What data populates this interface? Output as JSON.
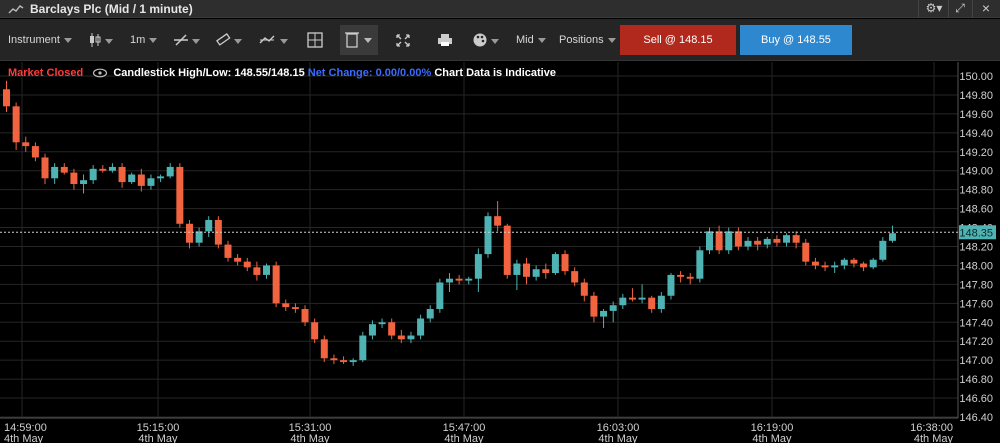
{
  "window": {
    "title": "Barclays Plc (Mid / 1 minute)"
  },
  "toolbar": {
    "instrument_label": "Instrument",
    "interval_label": "1m",
    "price_type_label": "Mid",
    "positions_label": "Positions",
    "sell_label": "Sell @ 148.15",
    "buy_label": "Buy @ 148.55"
  },
  "infobar": {
    "market_status": "Market Closed",
    "candle_label": "Candlestick High/Low: 148.55/148.15",
    "net_change_label": "Net Change: 0.00/0.00%",
    "indicative_label": "Chart Data is Indicative"
  },
  "chart_data": {
    "type": "candlestick",
    "yaxis_ticks": [
      "150.00",
      "149.80",
      "149.60",
      "149.40",
      "149.20",
      "149.00",
      "148.80",
      "148.60",
      "148.40",
      "148.20",
      "148.00",
      "147.80",
      "147.60",
      "147.40",
      "147.20",
      "147.00",
      "146.80",
      "146.60",
      "146.40"
    ],
    "ylim": [
      146.4,
      150.0
    ],
    "xaxis_ticks": [
      {
        "time": "14:59:00",
        "date": "4th May"
      },
      {
        "time": "15:15:00",
        "date": "4th May"
      },
      {
        "time": "15:31:00",
        "date": "4th May"
      },
      {
        "time": "15:47:00",
        "date": "4th May"
      },
      {
        "time": "16:03:00",
        "date": "4th May"
      },
      {
        "time": "16:19:00",
        "date": "4th May"
      },
      {
        "time": "16:38:00",
        "date": "4th May"
      }
    ],
    "current_price": "148.35",
    "current_price_value": 148.35,
    "up_color": "#4fb3b3",
    "down_color": "#f26440",
    "candles": [
      {
        "o": 149.86,
        "h": 149.95,
        "l": 149.62,
        "c": 149.68
      },
      {
        "o": 149.68,
        "h": 149.72,
        "l": 149.22,
        "c": 149.3
      },
      {
        "o": 149.3,
        "h": 149.36,
        "l": 149.2,
        "c": 149.26
      },
      {
        "o": 149.26,
        "h": 149.3,
        "l": 149.1,
        "c": 149.14
      },
      {
        "o": 149.14,
        "h": 149.18,
        "l": 148.86,
        "c": 148.92
      },
      {
        "o": 148.92,
        "h": 149.08,
        "l": 148.86,
        "c": 149.04
      },
      {
        "o": 149.04,
        "h": 149.08,
        "l": 148.96,
        "c": 148.98
      },
      {
        "o": 148.98,
        "h": 149.02,
        "l": 148.8,
        "c": 148.86
      },
      {
        "o": 148.86,
        "h": 148.96,
        "l": 148.76,
        "c": 148.9
      },
      {
        "o": 148.9,
        "h": 149.06,
        "l": 148.86,
        "c": 149.02
      },
      {
        "o": 149.02,
        "h": 149.06,
        "l": 148.98,
        "c": 149.0
      },
      {
        "o": 149.0,
        "h": 149.08,
        "l": 148.98,
        "c": 149.04
      },
      {
        "o": 149.04,
        "h": 149.08,
        "l": 148.82,
        "c": 148.88
      },
      {
        "o": 148.88,
        "h": 148.98,
        "l": 148.86,
        "c": 148.96
      },
      {
        "o": 148.96,
        "h": 149.02,
        "l": 148.78,
        "c": 148.84
      },
      {
        "o": 148.84,
        "h": 148.96,
        "l": 148.8,
        "c": 148.92
      },
      {
        "o": 148.92,
        "h": 148.96,
        "l": 148.88,
        "c": 148.94
      },
      {
        "o": 148.94,
        "h": 149.08,
        "l": 148.92,
        "c": 149.04
      },
      {
        "o": 149.04,
        "h": 149.08,
        "l": 148.4,
        "c": 148.44
      },
      {
        "o": 148.44,
        "h": 148.48,
        "l": 148.18,
        "c": 148.24
      },
      {
        "o": 148.24,
        "h": 148.4,
        "l": 148.2,
        "c": 148.36
      },
      {
        "o": 148.36,
        "h": 148.52,
        "l": 148.3,
        "c": 148.48
      },
      {
        "o": 148.48,
        "h": 148.52,
        "l": 148.18,
        "c": 148.22
      },
      {
        "o": 148.22,
        "h": 148.26,
        "l": 148.04,
        "c": 148.08
      },
      {
        "o": 148.08,
        "h": 148.12,
        "l": 148.0,
        "c": 148.04
      },
      {
        "o": 148.04,
        "h": 148.08,
        "l": 147.94,
        "c": 147.98
      },
      {
        "o": 147.98,
        "h": 148.04,
        "l": 147.84,
        "c": 147.9
      },
      {
        "o": 147.9,
        "h": 148.02,
        "l": 147.86,
        "c": 148.0
      },
      {
        "o": 148.0,
        "h": 148.04,
        "l": 147.56,
        "c": 147.6
      },
      {
        "o": 147.6,
        "h": 147.64,
        "l": 147.52,
        "c": 147.56
      },
      {
        "o": 147.56,
        "h": 147.6,
        "l": 147.5,
        "c": 147.54
      },
      {
        "o": 147.54,
        "h": 147.58,
        "l": 147.36,
        "c": 147.4
      },
      {
        "o": 147.4,
        "h": 147.44,
        "l": 147.18,
        "c": 147.22
      },
      {
        "o": 147.22,
        "h": 147.26,
        "l": 146.98,
        "c": 147.02
      },
      {
        "o": 147.02,
        "h": 147.06,
        "l": 146.96,
        "c": 147.0
      },
      {
        "o": 147.0,
        "h": 147.04,
        "l": 146.96,
        "c": 146.98
      },
      {
        "o": 146.98,
        "h": 147.02,
        "l": 146.94,
        "c": 147.0
      },
      {
        "o": 147.0,
        "h": 147.3,
        "l": 146.98,
        "c": 147.26
      },
      {
        "o": 147.26,
        "h": 147.42,
        "l": 147.22,
        "c": 147.38
      },
      {
        "o": 147.38,
        "h": 147.44,
        "l": 147.34,
        "c": 147.4
      },
      {
        "o": 147.4,
        "h": 147.44,
        "l": 147.22,
        "c": 147.26
      },
      {
        "o": 147.26,
        "h": 147.32,
        "l": 147.18,
        "c": 147.22
      },
      {
        "o": 147.22,
        "h": 147.3,
        "l": 147.18,
        "c": 147.26
      },
      {
        "o": 147.26,
        "h": 147.48,
        "l": 147.22,
        "c": 147.44
      },
      {
        "o": 147.44,
        "h": 147.58,
        "l": 147.4,
        "c": 147.54
      },
      {
        "o": 147.54,
        "h": 147.86,
        "l": 147.5,
        "c": 147.82
      },
      {
        "o": 147.82,
        "h": 147.92,
        "l": 147.72,
        "c": 147.86
      },
      {
        "o": 147.86,
        "h": 147.9,
        "l": 147.8,
        "c": 147.84
      },
      {
        "o": 147.84,
        "h": 147.88,
        "l": 147.8,
        "c": 147.86
      },
      {
        "o": 147.86,
        "h": 148.18,
        "l": 147.72,
        "c": 148.12
      },
      {
        "o": 148.12,
        "h": 148.56,
        "l": 148.08,
        "c": 148.52
      },
      {
        "o": 148.52,
        "h": 148.68,
        "l": 148.36,
        "c": 148.42
      },
      {
        "o": 148.42,
        "h": 148.44,
        "l": 147.86,
        "c": 147.9
      },
      {
        "o": 147.9,
        "h": 148.06,
        "l": 147.74,
        "c": 148.02
      },
      {
        "o": 148.02,
        "h": 148.08,
        "l": 147.8,
        "c": 147.88
      },
      {
        "o": 147.88,
        "h": 148.0,
        "l": 147.84,
        "c": 147.96
      },
      {
        "o": 147.96,
        "h": 148.02,
        "l": 147.86,
        "c": 147.92
      },
      {
        "o": 147.92,
        "h": 148.14,
        "l": 147.9,
        "c": 148.12
      },
      {
        "o": 148.12,
        "h": 148.16,
        "l": 147.9,
        "c": 147.94
      },
      {
        "o": 147.94,
        "h": 147.98,
        "l": 147.78,
        "c": 147.82
      },
      {
        "o": 147.82,
        "h": 147.86,
        "l": 147.62,
        "c": 147.68
      },
      {
        "o": 147.68,
        "h": 147.72,
        "l": 147.4,
        "c": 147.46
      },
      {
        "o": 147.46,
        "h": 147.54,
        "l": 147.34,
        "c": 147.52
      },
      {
        "o": 147.52,
        "h": 147.62,
        "l": 147.4,
        "c": 147.58
      },
      {
        "o": 147.58,
        "h": 147.7,
        "l": 147.54,
        "c": 147.66
      },
      {
        "o": 147.66,
        "h": 147.76,
        "l": 147.62,
        "c": 147.64
      },
      {
        "o": 147.64,
        "h": 147.8,
        "l": 147.6,
        "c": 147.66
      },
      {
        "o": 147.66,
        "h": 147.68,
        "l": 147.5,
        "c": 147.54
      },
      {
        "o": 147.54,
        "h": 147.72,
        "l": 147.5,
        "c": 147.68
      },
      {
        "o": 147.68,
        "h": 147.92,
        "l": 147.64,
        "c": 147.9
      },
      {
        "o": 147.9,
        "h": 147.94,
        "l": 147.82,
        "c": 147.88
      },
      {
        "o": 147.88,
        "h": 147.92,
        "l": 147.8,
        "c": 147.86
      },
      {
        "o": 147.86,
        "h": 148.2,
        "l": 147.82,
        "c": 148.16
      },
      {
        "o": 148.16,
        "h": 148.4,
        "l": 148.12,
        "c": 148.36
      },
      {
        "o": 148.36,
        "h": 148.42,
        "l": 148.12,
        "c": 148.16
      },
      {
        "o": 148.16,
        "h": 148.4,
        "l": 148.12,
        "c": 148.36
      },
      {
        "o": 148.36,
        "h": 148.4,
        "l": 148.16,
        "c": 148.2
      },
      {
        "o": 148.2,
        "h": 148.3,
        "l": 148.16,
        "c": 148.26
      },
      {
        "o": 148.26,
        "h": 148.3,
        "l": 148.16,
        "c": 148.22
      },
      {
        "o": 148.22,
        "h": 148.3,
        "l": 148.18,
        "c": 148.28
      },
      {
        "o": 148.28,
        "h": 148.32,
        "l": 148.2,
        "c": 148.24
      },
      {
        "o": 148.24,
        "h": 148.34,
        "l": 148.2,
        "c": 148.32
      },
      {
        "o": 148.32,
        "h": 148.36,
        "l": 148.18,
        "c": 148.24
      },
      {
        "o": 148.24,
        "h": 148.28,
        "l": 148.0,
        "c": 148.04
      },
      {
        "o": 148.04,
        "h": 148.08,
        "l": 147.96,
        "c": 148.0
      },
      {
        "o": 148.0,
        "h": 148.04,
        "l": 147.94,
        "c": 147.98
      },
      {
        "o": 147.98,
        "h": 148.04,
        "l": 147.92,
        "c": 148.0
      },
      {
        "o": 148.0,
        "h": 148.08,
        "l": 147.96,
        "c": 148.06
      },
      {
        "o": 148.06,
        "h": 148.08,
        "l": 147.98,
        "c": 148.02
      },
      {
        "o": 148.02,
        "h": 148.04,
        "l": 147.94,
        "c": 147.98
      },
      {
        "o": 147.98,
        "h": 148.08,
        "l": 147.96,
        "c": 148.06
      },
      {
        "o": 148.06,
        "h": 148.3,
        "l": 148.04,
        "c": 148.26
      },
      {
        "o": 148.26,
        "h": 148.42,
        "l": 148.24,
        "c": 148.34
      }
    ]
  }
}
